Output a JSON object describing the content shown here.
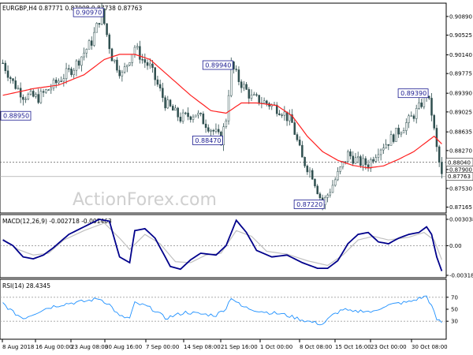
{
  "chart_data": [
    {
      "type": "candlestick",
      "title": "EURGBP,H4  0.87771 0.87908 0.87738 0.87763",
      "x_tick_labels": [
        "8 Aug 2018",
        "16 Aug 00:00",
        "23 Aug 08:00",
        "30 Aug 16:00",
        "7 Sep 00:00",
        "14 Sep 08:00",
        "21 Sep 16:00",
        "1 Oct 00:00",
        "8 Oct 08:00",
        "15 Oct 16:00",
        "23 Oct 00:00",
        "30 Oct 08:00"
      ],
      "ylim": [
        0.8705,
        0.9115
      ],
      "y_ticks": [
        "0.90890",
        "0.90525",
        "0.90140",
        "0.89775",
        "0.89390",
        "0.89025",
        "0.88635",
        "0.88270",
        "0.87900",
        "0.87530",
        "0.87165"
      ],
      "price_path": [
        {
          "x": 0,
          "y": 0.8998
        },
        {
          "x": 4,
          "y": 0.896
        },
        {
          "x": 8,
          "y": 0.8935
        },
        {
          "x": 14,
          "y": 0.893
        },
        {
          "x": 20,
          "y": 0.8955
        },
        {
          "x": 28,
          "y": 0.899
        },
        {
          "x": 35,
          "y": 0.904
        },
        {
          "x": 39,
          "y": 0.9097
        },
        {
          "x": 43,
          "y": 0.901
        },
        {
          "x": 47,
          "y": 0.8975
        },
        {
          "x": 52,
          "y": 0.903
        },
        {
          "x": 55,
          "y": 0.9005
        },
        {
          "x": 58,
          "y": 0.899
        },
        {
          "x": 64,
          "y": 0.892
        },
        {
          "x": 70,
          "y": 0.889
        },
        {
          "x": 76,
          "y": 0.89
        },
        {
          "x": 84,
          "y": 0.886
        },
        {
          "x": 86,
          "y": 0.8847
        },
        {
          "x": 88,
          "y": 0.889
        },
        {
          "x": 90,
          "y": 0.8994
        },
        {
          "x": 93,
          "y": 0.8965
        },
        {
          "x": 98,
          "y": 0.893
        },
        {
          "x": 104,
          "y": 0.892
        },
        {
          "x": 110,
          "y": 0.8905
        },
        {
          "x": 114,
          "y": 0.888
        },
        {
          "x": 118,
          "y": 0.881
        },
        {
          "x": 122,
          "y": 0.878
        },
        {
          "x": 126,
          "y": 0.8722
        },
        {
          "x": 130,
          "y": 0.876
        },
        {
          "x": 133,
          "y": 0.879
        },
        {
          "x": 136,
          "y": 0.882
        },
        {
          "x": 140,
          "y": 0.8805
        },
        {
          "x": 144,
          "y": 0.88
        },
        {
          "x": 148,
          "y": 0.883
        },
        {
          "x": 152,
          "y": 0.8845
        },
        {
          "x": 156,
          "y": 0.8865
        },
        {
          "x": 160,
          "y": 0.8885
        },
        {
          "x": 164,
          "y": 0.891
        },
        {
          "x": 167,
          "y": 0.8939
        },
        {
          "x": 169,
          "y": 0.89
        },
        {
          "x": 171,
          "y": 0.883
        },
        {
          "x": 173,
          "y": 0.8776
        }
      ],
      "moving_average": [
        {
          "x": 0,
          "y": 0.8935
        },
        {
          "x": 12,
          "y": 0.8948
        },
        {
          "x": 22,
          "y": 0.8955
        },
        {
          "x": 32,
          "y": 0.8975
        },
        {
          "x": 40,
          "y": 0.9005
        },
        {
          "x": 46,
          "y": 0.9015
        },
        {
          "x": 52,
          "y": 0.9015
        },
        {
          "x": 58,
          "y": 0.9005
        },
        {
          "x": 66,
          "y": 0.897
        },
        {
          "x": 74,
          "y": 0.8935
        },
        {
          "x": 82,
          "y": 0.8905
        },
        {
          "x": 88,
          "y": 0.89
        },
        {
          "x": 94,
          "y": 0.892
        },
        {
          "x": 100,
          "y": 0.892
        },
        {
          "x": 108,
          "y": 0.8915
        },
        {
          "x": 114,
          "y": 0.8895
        },
        {
          "x": 120,
          "y": 0.8855
        },
        {
          "x": 126,
          "y": 0.8825
        },
        {
          "x": 132,
          "y": 0.8808
        },
        {
          "x": 138,
          "y": 0.8798
        },
        {
          "x": 144,
          "y": 0.8793
        },
        {
          "x": 150,
          "y": 0.8797
        },
        {
          "x": 156,
          "y": 0.881
        },
        {
          "x": 162,
          "y": 0.8825
        },
        {
          "x": 166,
          "y": 0.884
        },
        {
          "x": 170,
          "y": 0.8855
        },
        {
          "x": 173,
          "y": 0.884
        }
      ],
      "horizontal_levels": [
        {
          "value": 0.8804,
          "label": "0.88040",
          "style": "dotted"
        },
        {
          "value": 0.87763,
          "label": "0.87763",
          "style": "solid-gray"
        }
      ],
      "annotations": [
        {
          "label": "0.90970",
          "x": 39,
          "y": 0.9097,
          "anchor": "left"
        },
        {
          "label": "0.88950",
          "x": 0,
          "y": 0.8895,
          "anchor": "right"
        },
        {
          "label": "0.89940",
          "x": 90,
          "y": 0.8994,
          "anchor": "left"
        },
        {
          "label": "0.88470",
          "x": 86,
          "y": 0.8847,
          "anchor": "left"
        },
        {
          "label": "0.89390",
          "x": 167,
          "y": 0.8939,
          "anchor": "left"
        },
        {
          "label": "0.87220",
          "x": 126,
          "y": 0.8722,
          "anchor": "left"
        }
      ],
      "watermark": "ActionForex.com",
      "colors": {
        "candles": "#2f4f4f",
        "moving_average": "#ff2020"
      }
    },
    {
      "type": "line",
      "title": "MACD(12,26,9) -0.002718 -0.001463",
      "ylim": [
        -0.0034,
        0.0033
      ],
      "y_ticks": [
        "0.003038",
        "0.00",
        "-0.003181"
      ],
      "series": [
        {
          "values": [
            {
              "x": 0,
              "y": 0.0006
            },
            {
              "x": 4,
              "y": 0.0
            },
            {
              "x": 8,
              "y": -0.0012
            },
            {
              "x": 12,
              "y": -0.0014
            },
            {
              "x": 16,
              "y": -0.001
            },
            {
              "x": 20,
              "y": -0.0002
            },
            {
              "x": 26,
              "y": 0.0012
            },
            {
              "x": 32,
              "y": 0.002
            },
            {
              "x": 38,
              "y": 0.0028
            },
            {
              "x": 42,
              "y": 0.0026
            },
            {
              "x": 46,
              "y": -0.0012
            },
            {
              "x": 50,
              "y": -0.0018
            },
            {
              "x": 52,
              "y": 0.0016
            },
            {
              "x": 56,
              "y": 0.0018
            },
            {
              "x": 60,
              "y": 0.0008
            },
            {
              "x": 66,
              "y": -0.0022
            },
            {
              "x": 70,
              "y": -0.0025
            },
            {
              "x": 74,
              "y": -0.0015
            },
            {
              "x": 78,
              "y": -0.0008
            },
            {
              "x": 84,
              "y": -0.001
            },
            {
              "x": 88,
              "y": 0.0
            },
            {
              "x": 92,
              "y": 0.0027
            },
            {
              "x": 96,
              "y": 0.0014
            },
            {
              "x": 100,
              "y": -0.0005
            },
            {
              "x": 106,
              "y": -0.0012
            },
            {
              "x": 112,
              "y": -0.001
            },
            {
              "x": 118,
              "y": -0.0018
            },
            {
              "x": 124,
              "y": -0.0024
            },
            {
              "x": 128,
              "y": -0.0024
            },
            {
              "x": 132,
              "y": -0.0016
            },
            {
              "x": 136,
              "y": 0.0002
            },
            {
              "x": 140,
              "y": 0.0012
            },
            {
              "x": 144,
              "y": 0.0014
            },
            {
              "x": 148,
              "y": 0.0004
            },
            {
              "x": 152,
              "y": 0.0002
            },
            {
              "x": 156,
              "y": 0.0008
            },
            {
              "x": 160,
              "y": 0.0012
            },
            {
              "x": 164,
              "y": 0.0014
            },
            {
              "x": 167,
              "y": 0.002
            },
            {
              "x": 169,
              "y": 0.0012
            },
            {
              "x": 171,
              "y": -0.0012
            },
            {
              "x": 173,
              "y": -0.0027
            }
          ]
        },
        {
          "values": [
            {
              "x": 0,
              "y": 0.0007
            },
            {
              "x": 6,
              "y": -0.0004
            },
            {
              "x": 12,
              "y": -0.001
            },
            {
              "x": 18,
              "y": -0.0008
            },
            {
              "x": 24,
              "y": 0.0006
            },
            {
              "x": 32,
              "y": 0.0016
            },
            {
              "x": 40,
              "y": 0.0024
            },
            {
              "x": 46,
              "y": 0.0008
            },
            {
              "x": 50,
              "y": -0.0004
            },
            {
              "x": 56,
              "y": 0.0012
            },
            {
              "x": 62,
              "y": 0.0002
            },
            {
              "x": 68,
              "y": -0.0017
            },
            {
              "x": 74,
              "y": -0.0018
            },
            {
              "x": 80,
              "y": -0.001
            },
            {
              "x": 86,
              "y": -0.0008
            },
            {
              "x": 92,
              "y": 0.0016
            },
            {
              "x": 98,
              "y": 0.001
            },
            {
              "x": 104,
              "y": -0.0006
            },
            {
              "x": 112,
              "y": -0.0009
            },
            {
              "x": 120,
              "y": -0.0016
            },
            {
              "x": 128,
              "y": -0.0021
            },
            {
              "x": 134,
              "y": -0.001
            },
            {
              "x": 140,
              "y": 0.0006
            },
            {
              "x": 146,
              "y": 0.001
            },
            {
              "x": 152,
              "y": 0.0006
            },
            {
              "x": 160,
              "y": 0.0009
            },
            {
              "x": 166,
              "y": 0.0014
            },
            {
              "x": 170,
              "y": 0.0006
            },
            {
              "x": 173,
              "y": -0.0015
            }
          ]
        }
      ],
      "colors": {
        "macd": "#00008b",
        "signal": "#c0c0c0"
      }
    },
    {
      "type": "line",
      "title": "RSI(14) 28.4345",
      "ylim": [
        0,
        100
      ],
      "y_ticks": [
        "70",
        "50",
        "30"
      ],
      "levels": [
        70,
        30
      ],
      "series": [
        {
          "values": [
            {
              "x": 0,
              "y": 60
            },
            {
              "x": 4,
              "y": 45
            },
            {
              "x": 8,
              "y": 35
            },
            {
              "x": 12,
              "y": 42
            },
            {
              "x": 16,
              "y": 50
            },
            {
              "x": 20,
              "y": 55
            },
            {
              "x": 26,
              "y": 60
            },
            {
              "x": 32,
              "y": 63
            },
            {
              "x": 38,
              "y": 68
            },
            {
              "x": 42,
              "y": 58
            },
            {
              "x": 46,
              "y": 38
            },
            {
              "x": 50,
              "y": 35
            },
            {
              "x": 52,
              "y": 60
            },
            {
              "x": 56,
              "y": 56
            },
            {
              "x": 60,
              "y": 48
            },
            {
              "x": 64,
              "y": 35
            },
            {
              "x": 68,
              "y": 40
            },
            {
              "x": 72,
              "y": 45
            },
            {
              "x": 78,
              "y": 42
            },
            {
              "x": 84,
              "y": 40
            },
            {
              "x": 88,
              "y": 52
            },
            {
              "x": 90,
              "y": 70
            },
            {
              "x": 94,
              "y": 55
            },
            {
              "x": 98,
              "y": 50
            },
            {
              "x": 104,
              "y": 45
            },
            {
              "x": 110,
              "y": 42
            },
            {
              "x": 116,
              "y": 35
            },
            {
              "x": 120,
              "y": 30
            },
            {
              "x": 126,
              "y": 25
            },
            {
              "x": 130,
              "y": 40
            },
            {
              "x": 134,
              "y": 50
            },
            {
              "x": 138,
              "y": 45
            },
            {
              "x": 142,
              "y": 48
            },
            {
              "x": 146,
              "y": 45
            },
            {
              "x": 150,
              "y": 55
            },
            {
              "x": 156,
              "y": 60
            },
            {
              "x": 160,
              "y": 62
            },
            {
              "x": 164,
              "y": 68
            },
            {
              "x": 167,
              "y": 72
            },
            {
              "x": 169,
              "y": 55
            },
            {
              "x": 171,
              "y": 33
            },
            {
              "x": 173,
              "y": 28
            }
          ]
        }
      ],
      "colors": {
        "rsi": "#1e90ff",
        "levels": "#a0a0a0"
      }
    }
  ]
}
